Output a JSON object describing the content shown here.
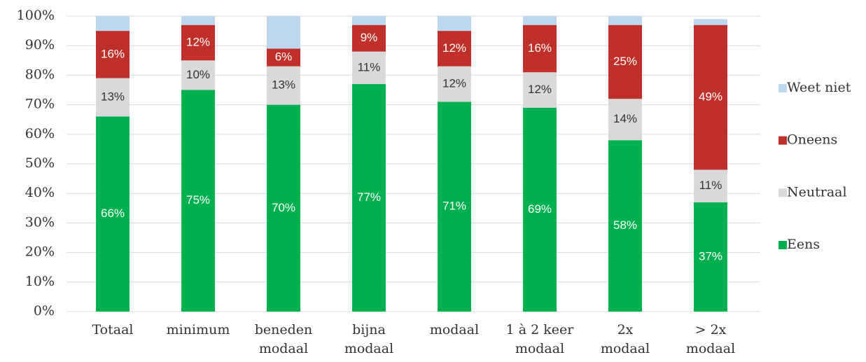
{
  "chart_data": {
    "type": "stacked_bar",
    "categories": [
      "Totaal",
      "minimum",
      "beneden\nmodaal",
      "bijna\nmodaal",
      "modaal",
      "1 à 2 keer\nmodaal",
      "2x\nmodaal",
      "> 2x\nmodaal"
    ],
    "series": [
      {
        "name": "Eens",
        "color": "#00b050",
        "values": [
          66,
          75,
          70,
          77,
          71,
          69,
          58,
          37
        ],
        "value_labels": [
          "66%",
          "75%",
          "70%",
          "77%",
          "71%",
          "69%",
          "58%",
          "37%"
        ]
      },
      {
        "name": "Neutraal",
        "color": "#d9d9d9",
        "values": [
          13,
          10,
          13,
          11,
          12,
          12,
          14,
          11
        ],
        "value_labels": [
          "13%",
          "10%",
          "13%",
          "11%",
          "12%",
          "12%",
          "14%",
          "11%"
        ]
      },
      {
        "name": "Oneens",
        "color": "#c0302a",
        "values": [
          16,
          12,
          6,
          9,
          12,
          16,
          25,
          49
        ],
        "value_labels": [
          "16%",
          "12%",
          "6%",
          "9%",
          "12%",
          "16%",
          "25%",
          "49%"
        ]
      },
      {
        "name": "Weet niet",
        "color": "#bdd7ee",
        "values": [
          5,
          3,
          11,
          3,
          5,
          3,
          3,
          2
        ]
      }
    ],
    "ylim": [
      0,
      100
    ],
    "yticks": [
      {
        "value": 0,
        "label": "0%"
      },
      {
        "value": 10,
        "label": "10%"
      },
      {
        "value": 20,
        "label": "20%"
      },
      {
        "value": 30,
        "label": "30%"
      },
      {
        "value": 40,
        "label": "40%"
      },
      {
        "value": 50,
        "label": "50%"
      },
      {
        "value": 60,
        "label": "60%"
      },
      {
        "value": 70,
        "label": "70%"
      },
      {
        "value": 80,
        "label": "80%"
      },
      {
        "value": 90,
        "label": "90%"
      },
      {
        "value": 100,
        "label": "100%"
      }
    ],
    "grid": true,
    "legend": "right"
  }
}
